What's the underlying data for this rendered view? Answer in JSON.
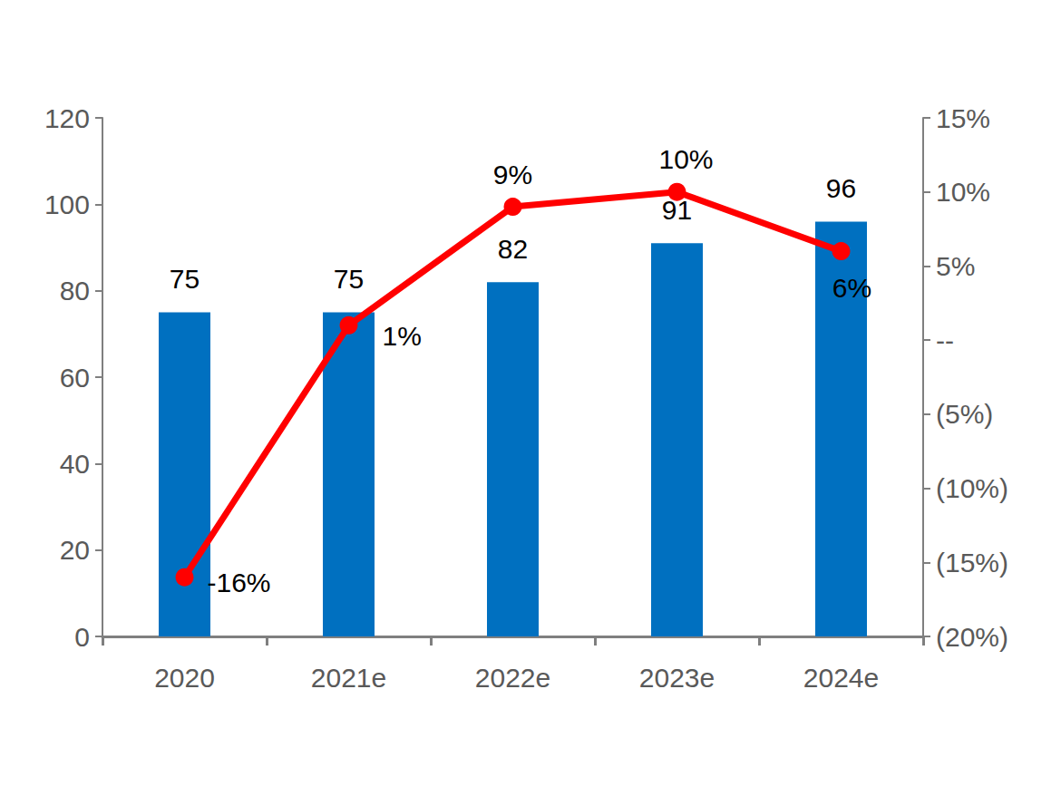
{
  "chart_data": {
    "type": "bar",
    "categories": [
      "2020",
      "2021e",
      "2022e",
      "2023e",
      "2024e"
    ],
    "series": [
      {
        "type": "bar",
        "color": "#0070c0",
        "values": [
          75,
          75,
          82,
          91,
          96
        ]
      },
      {
        "type": "line",
        "axis": "y2",
        "color": "#ff0000",
        "marker": "circle",
        "line_style": "solid",
        "values": [
          -16,
          1,
          9,
          10,
          6
        ],
        "value_labels": [
          "-16%",
          "1%",
          "9%",
          "10%",
          "6%"
        ]
      }
    ],
    "ylim": [
      0,
      120
    ],
    "yticks": [
      0,
      20,
      40,
      60,
      80,
      100,
      120
    ],
    "y2lim": [
      -20,
      15
    ],
    "y2ticks": [
      {
        "value": -20,
        "label": "(20%)"
      },
      {
        "value": -15,
        "label": "(15%)"
      },
      {
        "value": -10,
        "label": "(10%)"
      },
      {
        "value": -5,
        "label": "(5%)"
      },
      {
        "value": 0,
        "label": "--"
      },
      {
        "value": 5,
        "label": "5%"
      },
      {
        "value": 10,
        "label": "10%"
      },
      {
        "value": 15,
        "label": "15%"
      }
    ],
    "grid": false,
    "data_labels": true
  }
}
